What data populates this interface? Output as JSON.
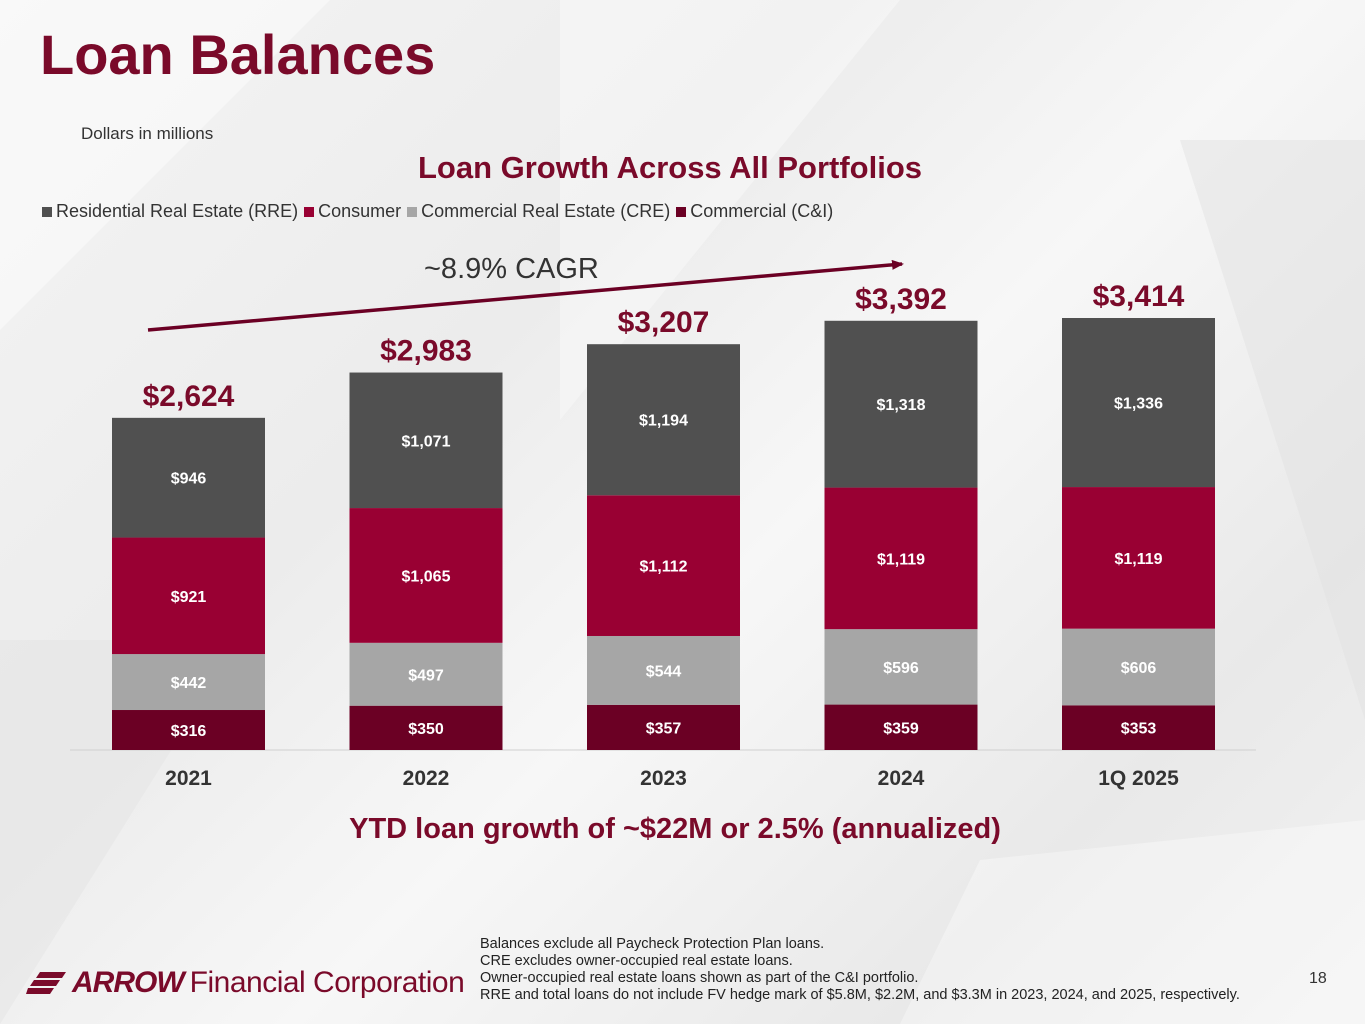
{
  "slide": {
    "title": "Loan Balances",
    "units_note": "Dollars in millions",
    "growth_note": "YTD loan growth of ~$22M or 2.5% (annualized)",
    "page_number": "18"
  },
  "logo": {
    "word": "ARROW",
    "rest": "Financial Corporation"
  },
  "footnotes": [
    "Balances exclude all Paycheck Protection Plan loans.",
    "CRE excludes owner-occupied real estate loans.",
    "Owner-occupied real estate loans shown as part of the C&I portfolio.",
    "RRE and total loans do not include FV hedge mark of $5.8M, $2.2M, and $3.3M in 2023, 2024, and 2025, respectively."
  ],
  "colors": {
    "rre": "#505050",
    "consumer": "#990033",
    "cre": "#a6a6a6",
    "ci": "#6b0024",
    "accent": "#7a0a2a"
  },
  "chart_data": {
    "type": "bar",
    "stacked": true,
    "title": "Loan Growth Across All Portfolios",
    "annotation": "~8.9% CAGR",
    "categories": [
      "2021",
      "2022",
      "2023",
      "2024",
      "1Q 2025"
    ],
    "series": [
      {
        "name": "Commercial (C&I)",
        "key": "ci",
        "values": [
          316,
          350,
          357,
          359,
          353
        ],
        "labels": [
          "$316",
          "$350",
          "$357",
          "$359",
          "$353"
        ]
      },
      {
        "name": "Commercial Real Estate (CRE)",
        "key": "cre",
        "values": [
          442,
          497,
          544,
          596,
          606
        ],
        "labels": [
          "$442",
          "$497",
          "$544",
          "$596",
          "$606"
        ]
      },
      {
        "name": "Consumer",
        "key": "consumer",
        "values": [
          921,
          1065,
          1112,
          1119,
          1119
        ],
        "labels": [
          "$921",
          "$1,065",
          "$1,112",
          "$1,119",
          "$1,119"
        ]
      },
      {
        "name": "Residential Real Estate (RRE)",
        "key": "rre",
        "values": [
          946,
          1071,
          1194,
          1318,
          1336
        ],
        "labels": [
          "$946",
          "$1,071",
          "$1,194",
          "$1,318",
          "$1,336"
        ]
      }
    ],
    "legend_order": [
      "Residential Real Estate (RRE)",
      "Consumer",
      "Commercial Real Estate (CRE)",
      "Commercial (C&I)"
    ],
    "legend_keys": [
      "rre",
      "consumer",
      "cre",
      "ci"
    ],
    "totals": [
      2624,
      2983,
      3207,
      3392,
      3414
    ],
    "total_labels": [
      "$2,624",
      "$2,983",
      "$3,207",
      "$3,392",
      "$3,414"
    ],
    "legend_placement": "top-left",
    "grid": false,
    "ylim": [
      0,
      3414
    ]
  }
}
